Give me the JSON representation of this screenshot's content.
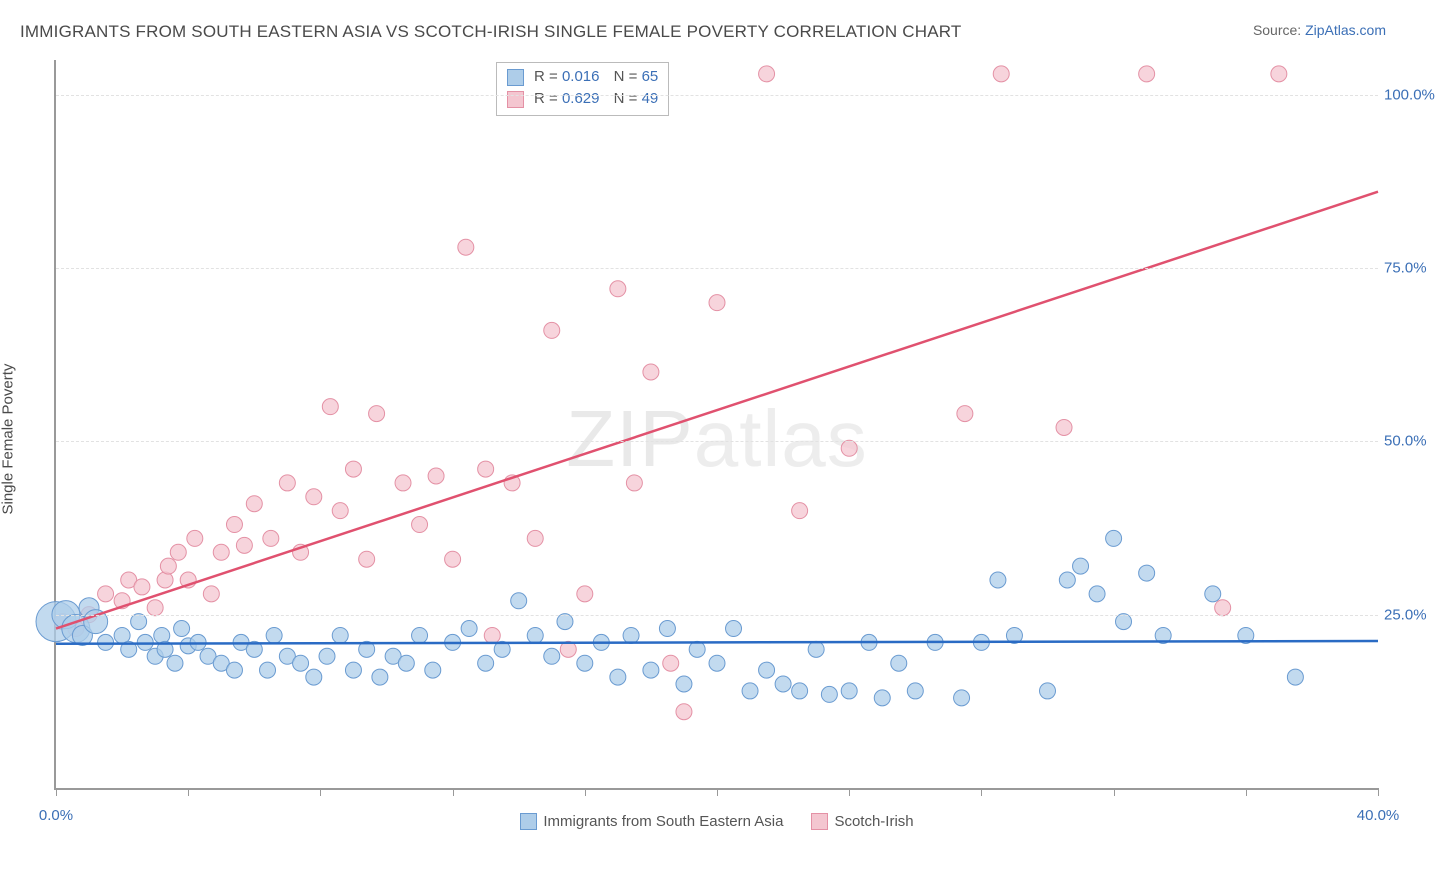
{
  "title": "IMMIGRANTS FROM SOUTH EASTERN ASIA VS SCOTCH-IRISH SINGLE FEMALE POVERTY CORRELATION CHART",
  "source_prefix": "Source: ",
  "source_link": "ZipAtlas.com",
  "y_axis_label": "Single Female Poverty",
  "watermark_a": "ZIP",
  "watermark_b": "atlas",
  "chart": {
    "type": "scatter",
    "xlim": [
      0,
      40
    ],
    "ylim": [
      0,
      105
    ],
    "x_ticks": [
      0,
      4,
      8,
      12,
      16,
      20,
      24,
      28,
      32,
      36,
      40
    ],
    "x_tick_labels": {
      "0": "0.0%",
      "40": "40.0%"
    },
    "y_grid": [
      25,
      50,
      75,
      100
    ],
    "y_tick_labels": {
      "25": "25.0%",
      "50": "50.0%",
      "75": "75.0%",
      "100": "100.0%"
    },
    "background_color": "#ffffff",
    "grid_color": "#e2e2e2",
    "axis_color": "#999999",
    "label_color": "#3b6fb6",
    "series": [
      {
        "key": "blue",
        "name": "Immigrants from South Eastern Asia",
        "color_fill": "#aecde9",
        "color_stroke": "#6a9bd1",
        "line_color": "#2a6bc4",
        "R": "0.016",
        "N": "65",
        "marker_r": 8,
        "trend": {
          "y_at_x0": 20.8,
          "y_at_xmax": 21.2
        },
        "points": [
          [
            0.0,
            24,
            20
          ],
          [
            0.3,
            25,
            14
          ],
          [
            0.6,
            23,
            14
          ],
          [
            0.8,
            22,
            10
          ],
          [
            1.0,
            26,
            10
          ],
          [
            1.2,
            24,
            12
          ],
          [
            1.5,
            21
          ],
          [
            2.0,
            22
          ],
          [
            2.2,
            20
          ],
          [
            2.5,
            24
          ],
          [
            2.7,
            21
          ],
          [
            3.0,
            19
          ],
          [
            3.2,
            22
          ],
          [
            3.3,
            20
          ],
          [
            3.6,
            18
          ],
          [
            3.8,
            23
          ],
          [
            4.0,
            20.5
          ],
          [
            4.3,
            21
          ],
          [
            4.6,
            19
          ],
          [
            5.0,
            18
          ],
          [
            5.4,
            17
          ],
          [
            5.6,
            21
          ],
          [
            6.0,
            20
          ],
          [
            6.4,
            17
          ],
          [
            6.6,
            22
          ],
          [
            7.0,
            19
          ],
          [
            7.4,
            18
          ],
          [
            7.8,
            16
          ],
          [
            8.2,
            19
          ],
          [
            8.6,
            22
          ],
          [
            9.0,
            17
          ],
          [
            9.4,
            20
          ],
          [
            9.8,
            16
          ],
          [
            10.2,
            19
          ],
          [
            10.6,
            18
          ],
          [
            11.0,
            22
          ],
          [
            11.4,
            17
          ],
          [
            12.0,
            21
          ],
          [
            12.5,
            23
          ],
          [
            13.0,
            18
          ],
          [
            13.5,
            20
          ],
          [
            14.0,
            27
          ],
          [
            14.5,
            22
          ],
          [
            15.0,
            19
          ],
          [
            15.4,
            24
          ],
          [
            16.0,
            18
          ],
          [
            16.5,
            21
          ],
          [
            17.0,
            16
          ],
          [
            17.4,
            22
          ],
          [
            18.0,
            17
          ],
          [
            18.5,
            23
          ],
          [
            19.0,
            15
          ],
          [
            19.4,
            20
          ],
          [
            20.0,
            18
          ],
          [
            20.5,
            23
          ],
          [
            21.0,
            14
          ],
          [
            21.5,
            17
          ],
          [
            22.0,
            15
          ],
          [
            22.5,
            14
          ],
          [
            23.0,
            20
          ],
          [
            23.4,
            13.5
          ],
          [
            24.0,
            14
          ],
          [
            24.6,
            21
          ],
          [
            25.0,
            13
          ],
          [
            25.5,
            18
          ],
          [
            26.0,
            14
          ],
          [
            26.6,
            21
          ],
          [
            27.4,
            13
          ],
          [
            28.0,
            21
          ],
          [
            28.5,
            30
          ],
          [
            29.0,
            22
          ],
          [
            30.0,
            14
          ],
          [
            30.6,
            30
          ],
          [
            31.0,
            32
          ],
          [
            31.5,
            28
          ],
          [
            32.0,
            36
          ],
          [
            32.3,
            24
          ],
          [
            33.0,
            31
          ],
          [
            33.5,
            22
          ],
          [
            35.0,
            28
          ],
          [
            36.0,
            22
          ],
          [
            37.5,
            16
          ]
        ]
      },
      {
        "key": "pink",
        "name": "Scotch-Irish",
        "color_fill": "#f4c6d0",
        "color_stroke": "#e491a5",
        "line_color": "#e0516f",
        "R": "0.629",
        "N": "49",
        "marker_r": 8,
        "trend": {
          "y_at_x0": 23,
          "y_at_xmax": 86
        },
        "points": [
          [
            0.2,
            24
          ],
          [
            0.6,
            23
          ],
          [
            1.0,
            25
          ],
          [
            1.5,
            28
          ],
          [
            2.0,
            27
          ],
          [
            2.2,
            30
          ],
          [
            2.6,
            29
          ],
          [
            3.0,
            26
          ],
          [
            3.3,
            30
          ],
          [
            3.4,
            32
          ],
          [
            3.7,
            34
          ],
          [
            4.0,
            30
          ],
          [
            4.2,
            36
          ],
          [
            4.7,
            28
          ],
          [
            5.0,
            34
          ],
          [
            5.4,
            38
          ],
          [
            5.7,
            35
          ],
          [
            6.0,
            41
          ],
          [
            6.5,
            36
          ],
          [
            7.0,
            44
          ],
          [
            7.4,
            34
          ],
          [
            7.8,
            42
          ],
          [
            8.3,
            55
          ],
          [
            8.6,
            40
          ],
          [
            9.0,
            46
          ],
          [
            9.4,
            33
          ],
          [
            9.7,
            54
          ],
          [
            10.5,
            44
          ],
          [
            11.0,
            38
          ],
          [
            11.5,
            45
          ],
          [
            12.0,
            33
          ],
          [
            12.4,
            78
          ],
          [
            13.0,
            46
          ],
          [
            13.2,
            22
          ],
          [
            13.8,
            44
          ],
          [
            14.5,
            36
          ],
          [
            15.0,
            66
          ],
          [
            15.5,
            20
          ],
          [
            16.0,
            28
          ],
          [
            17.0,
            72
          ],
          [
            17.5,
            44
          ],
          [
            18.0,
            60
          ],
          [
            18.6,
            18
          ],
          [
            19.0,
            11
          ],
          [
            20.0,
            70
          ],
          [
            21.5,
            103
          ],
          [
            22.5,
            40
          ],
          [
            24.0,
            49
          ],
          [
            27.5,
            54
          ],
          [
            28.6,
            103
          ],
          [
            30.5,
            52
          ],
          [
            33.0,
            103
          ],
          [
            35.3,
            26
          ],
          [
            37.0,
            103
          ]
        ]
      }
    ]
  },
  "rbox": {
    "r_prefix": "R = ",
    "n_prefix": "N = "
  }
}
